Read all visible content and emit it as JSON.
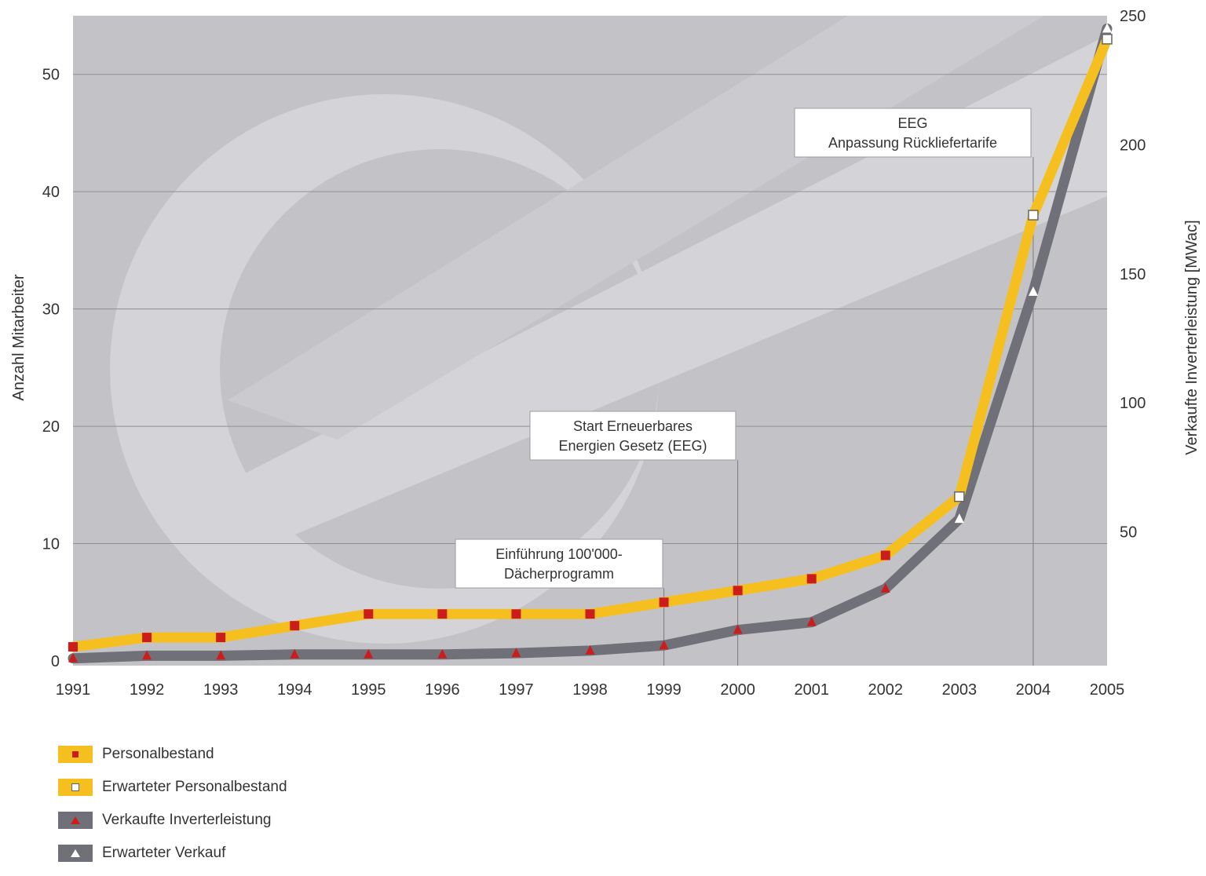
{
  "chart_data": {
    "type": "line",
    "x": [
      "1991",
      "1992",
      "1993",
      "1994",
      "1995",
      "1996",
      "1997",
      "1998",
      "1999",
      "2000",
      "2001",
      "2002",
      "2003",
      "2004",
      "2005"
    ],
    "ylabel": "Anzahl Mitarbeiter",
    "y2label": "Verkaufte Inverterleistung [MWac]",
    "ylim": [
      0,
      55
    ],
    "y2lim": [
      0,
      250
    ],
    "yticks": [
      "0",
      "10",
      "20",
      "30",
      "40",
      "50"
    ],
    "y2ticks": [
      "50",
      "100",
      "150",
      "200",
      "250"
    ],
    "grid": true,
    "legend_position": "bottom-left",
    "series": [
      {
        "name": "Personalbestand",
        "axis": "left",
        "color": "#f5c01f",
        "marker": "filled-square",
        "x": [
          "1991",
          "1992",
          "1993",
          "1994",
          "1995",
          "1996",
          "1997",
          "1998",
          "1999",
          "2000",
          "2001",
          "2002"
        ],
        "values": [
          1.2,
          2,
          2,
          3,
          4,
          4,
          4,
          4,
          5,
          6,
          7,
          9
        ]
      },
      {
        "name": "Erwarteter Personalbestand",
        "axis": "left",
        "color": "#f5c01f",
        "marker": "open-square",
        "x": [
          "2002",
          "2003",
          "2004",
          "2005"
        ],
        "values": [
          9,
          14,
          38,
          53
        ]
      },
      {
        "name": "Verkaufte Inverterleistung",
        "axis": "right",
        "color": "#707078",
        "marker": "filled-triangle",
        "x": [
          "1991",
          "1992",
          "1993",
          "1994",
          "1995",
          "1996",
          "1997",
          "1998",
          "1999",
          "2000",
          "2001",
          "2002"
        ],
        "values": [
          1,
          2,
          2,
          2.5,
          2.5,
          2.5,
          3,
          4,
          6,
          12,
          15,
          28
        ]
      },
      {
        "name": "Erwarteter Verkauf",
        "axis": "right",
        "color": "#707078",
        "marker": "open-triangle",
        "x": [
          "2002",
          "2003",
          "2004",
          "2005"
        ],
        "values": [
          28,
          55,
          143,
          245
        ]
      }
    ],
    "annotations": [
      {
        "id": "einfuehrung",
        "lines": [
          "Einführung 100'000-",
          "Dächerprogramm"
        ],
        "x": "1999"
      },
      {
        "id": "start-eeg",
        "lines": [
          "Start Erneuerbares",
          "Energien Gesetz (EEG)"
        ],
        "x": "2000"
      },
      {
        "id": "eeg",
        "lines": [
          "EEG",
          "Anpassung Rückliefertarife"
        ],
        "x": "2004"
      }
    ]
  },
  "legend": {
    "items": [
      {
        "label": "Personalbestand",
        "swatch_color": "#f5c01f",
        "marker": "filled-square"
      },
      {
        "label": "Erwarteter Personalbestand",
        "swatch_color": "#f5c01f",
        "marker": "open-square"
      },
      {
        "label": "Verkaufte Inverterleistung",
        "swatch_color": "#707078",
        "marker": "filled-triangle"
      },
      {
        "label": "Erwarteter Verkauf",
        "swatch_color": "#707078",
        "marker": "open-triangle"
      }
    ]
  },
  "colors": {
    "plot_background": "#c3c3c7",
    "watermark": "#d4d4d8",
    "gridline": "#8e8e94",
    "marker_red": "#cc1d1d"
  }
}
